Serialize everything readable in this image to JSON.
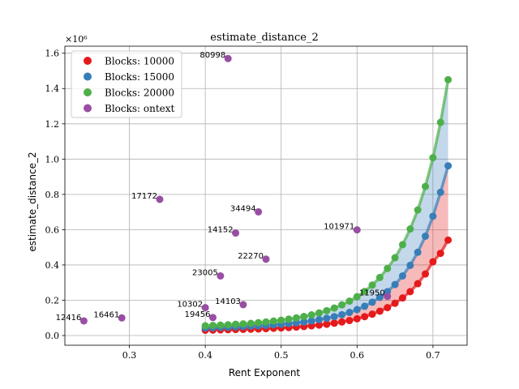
{
  "chart_data": {
    "type": "scatter",
    "title": "estimate_distance_2",
    "xlabel": "Rent Exponent",
    "ylabel": "estimate_distance_2",
    "y_offset_label": "×10⁶",
    "xlim": [
      0.215,
      0.745
    ],
    "ylim": [
      -0.055,
      1.64
    ],
    "xticks": [
      0.3,
      0.4,
      0.5,
      0.6,
      0.7
    ],
    "xtick_labels": [
      "0.3",
      "0.4",
      "0.5",
      "0.6",
      "0.7"
    ],
    "yticks": [
      0.0,
      0.2,
      0.4,
      0.6,
      0.8,
      1.0,
      1.2,
      1.4,
      1.6
    ],
    "ytick_labels": [
      "0.0",
      "0.2",
      "0.4",
      "0.6",
      "0.8",
      "1.0",
      "1.2",
      "1.4",
      "1.6"
    ],
    "grid": true,
    "legend_position": "top-left",
    "curve_x": [
      0.4,
      0.41,
      0.42,
      0.43,
      0.44,
      0.45,
      0.46,
      0.47,
      0.48,
      0.49,
      0.5,
      0.51,
      0.52,
      0.53,
      0.54,
      0.55,
      0.56,
      0.57,
      0.58,
      0.59,
      0.6,
      0.61,
      0.62,
      0.63,
      0.64,
      0.65,
      0.66,
      0.67,
      0.68,
      0.69,
      0.7,
      0.71,
      0.72
    ],
    "series": [
      {
        "name": "Blocks: 10000",
        "color": "#e41a1c",
        "values": [
          0.03,
          0.031,
          0.032,
          0.033,
          0.034,
          0.035,
          0.036,
          0.037,
          0.039,
          0.041,
          0.043,
          0.045,
          0.048,
          0.051,
          0.055,
          0.059,
          0.064,
          0.07,
          0.077,
          0.085,
          0.095,
          0.107,
          0.121,
          0.138,
          0.158,
          0.183,
          0.213,
          0.249,
          0.294,
          0.349,
          0.418,
          0.466,
          0.541
        ]
      },
      {
        "name": "Blocks: 15000",
        "color": "#377eb8",
        "values": [
          0.043,
          0.044,
          0.046,
          0.047,
          0.049,
          0.051,
          0.053,
          0.055,
          0.058,
          0.061,
          0.064,
          0.068,
          0.072,
          0.077,
          0.083,
          0.09,
          0.098,
          0.107,
          0.118,
          0.131,
          0.147,
          0.166,
          0.189,
          0.216,
          0.249,
          0.289,
          0.338,
          0.398,
          0.472,
          0.563,
          0.676,
          0.812,
          0.962
        ]
      },
      {
        "name": "Blocks: 20000",
        "color": "#4daf4a",
        "values": [
          0.055,
          0.057,
          0.059,
          0.061,
          0.064,
          0.066,
          0.069,
          0.073,
          0.077,
          0.082,
          0.087,
          0.093,
          0.1,
          0.108,
          0.117,
          0.128,
          0.141,
          0.156,
          0.174,
          0.195,
          0.22,
          0.25,
          0.286,
          0.329,
          0.38,
          0.441,
          0.515,
          0.604,
          0.712,
          0.845,
          1.008,
          1.208,
          1.45
        ]
      },
      {
        "name": "Blocks: ontext",
        "color": "#984ea3",
        "points": [
          {
            "x": 0.24,
            "y": 0.083,
            "label": "12416"
          },
          {
            "x": 0.29,
            "y": 0.1,
            "label": "16461"
          },
          {
            "x": 0.34,
            "y": 0.772,
            "label": "17172"
          },
          {
            "x": 0.4,
            "y": 0.158,
            "label": "10302"
          },
          {
            "x": 0.41,
            "y": 0.102,
            "label": "19456"
          },
          {
            "x": 0.42,
            "y": 0.338,
            "label": "23005"
          },
          {
            "x": 0.43,
            "y": 1.57,
            "label": "80998"
          },
          {
            "x": 0.44,
            "y": 0.581,
            "label": "14152"
          },
          {
            "x": 0.45,
            "y": 0.175,
            "label": "14103"
          },
          {
            "x": 0.47,
            "y": 0.701,
            "label": "34494"
          },
          {
            "x": 0.48,
            "y": 0.433,
            "label": "22270"
          },
          {
            "x": 0.6,
            "y": 0.599,
            "label": "101971"
          },
          {
            "x": 0.64,
            "y": 0.222,
            "label": "11950"
          }
        ]
      }
    ]
  }
}
